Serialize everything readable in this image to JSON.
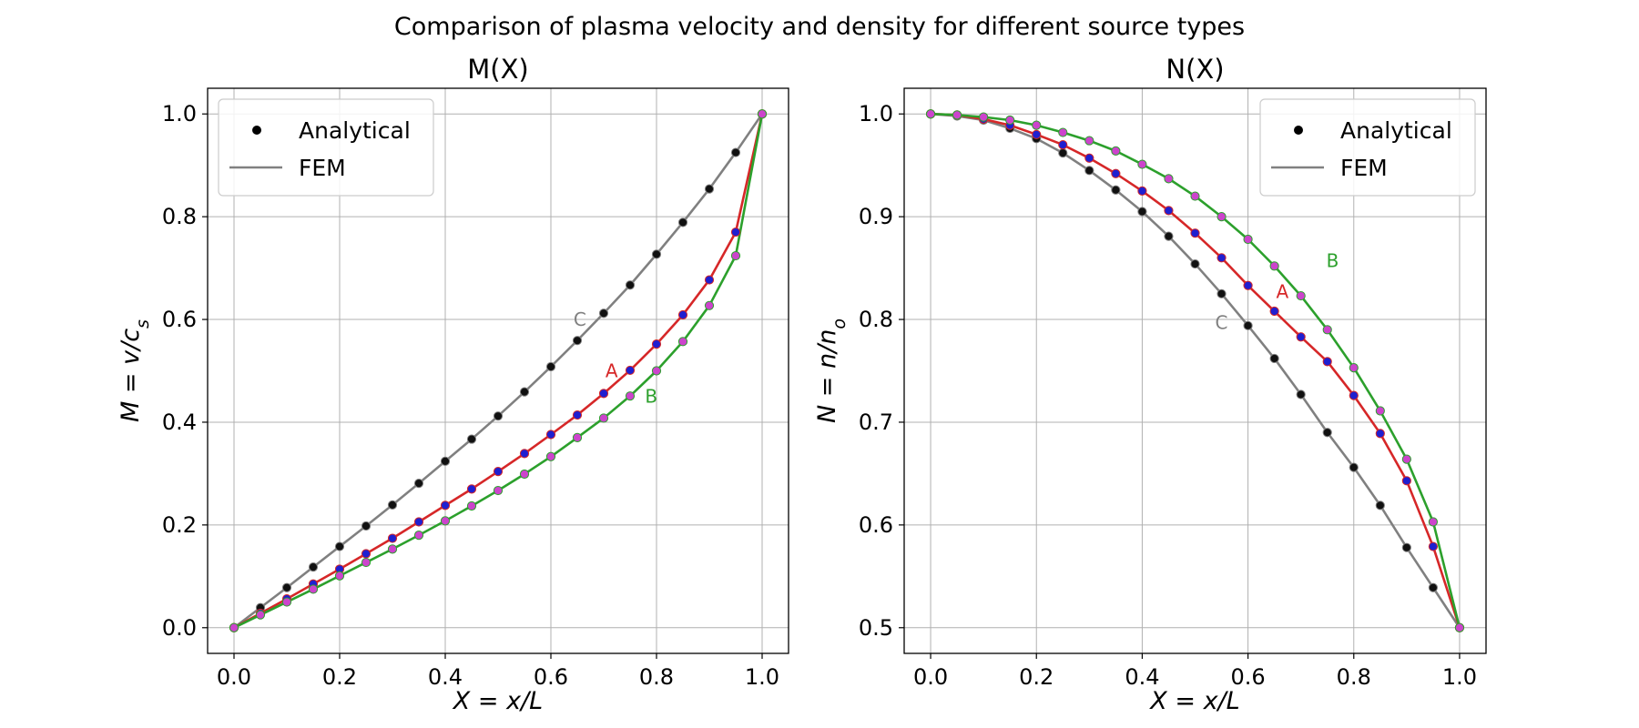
{
  "figure": {
    "title": "Comparison of plasma velocity and density for different source types"
  },
  "colors": {
    "A": "#d62728",
    "B": "#2ca02c",
    "C": "#808080",
    "marker_A": "#1f1fd0",
    "marker_B": "#cc44cc",
    "marker_C": "#111111",
    "grid": "#b0b0b0"
  },
  "chart_data": [
    {
      "type": "line",
      "title": "M(X)",
      "xlabel": "X = x/L",
      "ylabel": "M = v/c_s",
      "xlim": [
        -0.05,
        1.05
      ],
      "ylim": [
        -0.05,
        1.05
      ],
      "xticks": [
        "0.0",
        "0.2",
        "0.4",
        "0.6",
        "0.8",
        "1.0"
      ],
      "yticks": [
        "0.0",
        "0.2",
        "0.4",
        "0.6",
        "0.8",
        "1.0"
      ],
      "grid": true,
      "legend_position": "top-left",
      "legend": [
        {
          "label": "Analytical",
          "kind": "marker"
        },
        {
          "label": "FEM",
          "kind": "line"
        }
      ],
      "curve_labels": [
        {
          "text": "C",
          "series": "C",
          "x": 0.655,
          "y": 0.6
        },
        {
          "text": "A",
          "series": "A",
          "x": 0.715,
          "y": 0.5
        },
        {
          "text": "B",
          "series": "B",
          "x": 0.79,
          "y": 0.45
        }
      ],
      "x": [
        0.0,
        0.05,
        0.1,
        0.15,
        0.2,
        0.25,
        0.3,
        0.35,
        0.4,
        0.45,
        0.5,
        0.55,
        0.6,
        0.65,
        0.7,
        0.75,
        0.8,
        0.85,
        0.9,
        0.95,
        1.0
      ],
      "series": [
        {
          "name": "C",
          "values": [
            0.0,
            0.039,
            0.078,
            0.118,
            0.158,
            0.198,
            0.239,
            0.281,
            0.324,
            0.367,
            0.412,
            0.459,
            0.508,
            0.559,
            0.612,
            0.667,
            0.727,
            0.789,
            0.854,
            0.925,
            1.0
          ]
        },
        {
          "name": "A",
          "values": [
            0.0,
            0.028,
            0.056,
            0.085,
            0.114,
            0.144,
            0.174,
            0.206,
            0.238,
            0.27,
            0.304,
            0.339,
            0.376,
            0.414,
            0.456,
            0.501,
            0.552,
            0.609,
            0.677,
            0.77,
            1.0
          ]
        },
        {
          "name": "B",
          "values": [
            0.0,
            0.025,
            0.05,
            0.075,
            0.101,
            0.127,
            0.153,
            0.18,
            0.208,
            0.237,
            0.267,
            0.299,
            0.333,
            0.37,
            0.408,
            0.451,
            0.5,
            0.557,
            0.627,
            0.724,
            1.0
          ]
        }
      ]
    },
    {
      "type": "line",
      "title": "N(X)",
      "xlabel": "X = x/L",
      "ylabel": "N = n/n_o",
      "xlim": [
        -0.05,
        1.05
      ],
      "ylim": [
        0.475,
        1.025
      ],
      "xticks": [
        "0.0",
        "0.2",
        "0.4",
        "0.6",
        "0.8",
        "1.0"
      ],
      "yticks": [
        "0.5",
        "0.6",
        "0.7",
        "0.8",
        "0.9",
        "1.0"
      ],
      "grid": true,
      "legend_position": "top-right",
      "legend": [
        {
          "label": "Analytical",
          "kind": "marker"
        },
        {
          "label": "FEM",
          "kind": "line"
        }
      ],
      "curve_labels": [
        {
          "text": "C",
          "series": "C",
          "x": 0.55,
          "y": 0.797
        },
        {
          "text": "A",
          "series": "A",
          "x": 0.665,
          "y": 0.827
        },
        {
          "text": "B",
          "series": "B",
          "x": 0.76,
          "y": 0.857
        }
      ],
      "x": [
        0.0,
        0.05,
        0.1,
        0.15,
        0.2,
        0.25,
        0.3,
        0.35,
        0.4,
        0.45,
        0.5,
        0.55,
        0.6,
        0.65,
        0.7,
        0.75,
        0.8,
        0.85,
        0.9,
        0.95,
        1.0
      ],
      "series": [
        {
          "name": "C",
          "values": [
            1.0,
            0.998,
            0.994,
            0.986,
            0.976,
            0.962,
            0.945,
            0.926,
            0.905,
            0.881,
            0.854,
            0.825,
            0.794,
            0.762,
            0.727,
            0.69,
            0.656,
            0.619,
            0.578,
            0.539,
            0.5
          ]
        },
        {
          "name": "A",
          "values": [
            1.0,
            0.999,
            0.995,
            0.989,
            0.98,
            0.97,
            0.957,
            0.942,
            0.925,
            0.906,
            0.884,
            0.86,
            0.833,
            0.808,
            0.783,
            0.759,
            0.726,
            0.689,
            0.643,
            0.579,
            0.5
          ]
        },
        {
          "name": "B",
          "values": [
            1.0,
            0.999,
            0.997,
            0.994,
            0.989,
            0.982,
            0.974,
            0.964,
            0.951,
            0.937,
            0.92,
            0.9,
            0.878,
            0.852,
            0.823,
            0.79,
            0.753,
            0.711,
            0.664,
            0.603,
            0.5
          ]
        }
      ]
    }
  ]
}
